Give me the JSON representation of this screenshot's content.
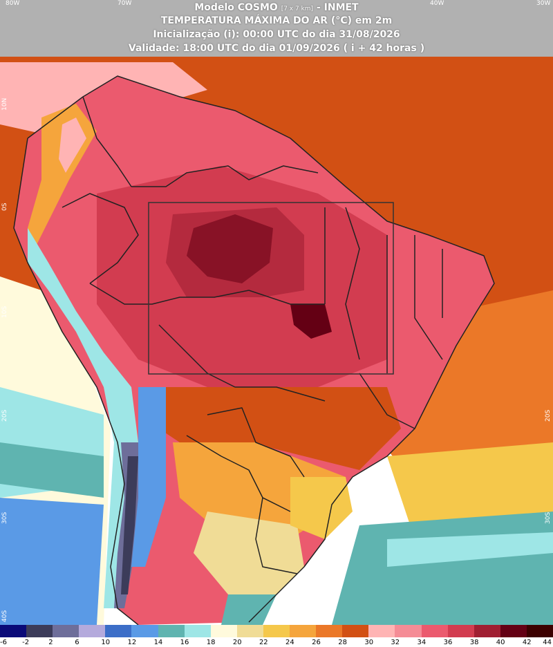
{
  "header": {
    "title": "Modelo COSMO",
    "resolution": "[7 x 7 km]",
    "agency": "- INMET",
    "variable": "TEMPERATURA MÁXIMA DO AR (°C) em 2m",
    "init": "Inicialização (i): 00:00 UTC do dia 31/08/2026",
    "valid": "Validade: 18:00 UTC do dia 01/09/2026 ( i + 42 horas )"
  },
  "lon_labels": [
    "80W",
    "70W",
    "40W",
    "30W"
  ],
  "lat_labels_left": [
    "10N",
    "0S",
    "10S",
    "20S",
    "30S",
    "40S"
  ],
  "lat_labels_right": [
    "20S",
    "30S"
  ],
  "colorbar": {
    "colors": [
      "#0a0a78",
      "#3c3c5a",
      "#6e6e9a",
      "#b4aadc",
      "#3c6ec8",
      "#5a9ae6",
      "#5fb4b0",
      "#9ee6e6",
      "#fffadc",
      "#f0dc96",
      "#f5c84b",
      "#f5a53c",
      "#eb7828",
      "#d25014",
      "#ffb4b4",
      "#f58c96",
      "#eb5a6e",
      "#d23c50",
      "#a01e32",
      "#640014",
      "#3c0000"
    ],
    "ticks": [
      "-6",
      "-2",
      "2",
      "6",
      "10",
      "12",
      "14",
      "16",
      "18",
      "20",
      "22",
      "24",
      "26",
      "28",
      "30",
      "32",
      "34",
      "36",
      "38",
      "40",
      "42",
      "44"
    ]
  }
}
